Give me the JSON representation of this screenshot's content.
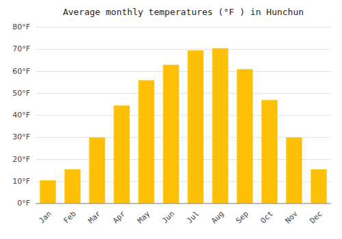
{
  "chart_data": {
    "type": "bar",
    "title": "Average monthly temperatures (°F ) in Hunchun",
    "categories": [
      "Jan",
      "Feb",
      "Mar",
      "Apr",
      "May",
      "Jun",
      "Jul",
      "Aug",
      "Sep",
      "Oct",
      "Nov",
      "Dec"
    ],
    "values": [
      10.5,
      15.5,
      30,
      44.5,
      56,
      63,
      69.5,
      70.5,
      61,
      47,
      30,
      15.5
    ],
    "color": "#FFC107",
    "ylim": [
      0,
      80
    ],
    "yticks": [
      {
        "value": 0,
        "label": "0°F"
      },
      {
        "value": 10,
        "label": "10°F"
      },
      {
        "value": 20,
        "label": "20°F"
      },
      {
        "value": 30,
        "label": "30°F"
      },
      {
        "value": 40,
        "label": "40°F"
      },
      {
        "value": 50,
        "label": "50°F"
      },
      {
        "value": 60,
        "label": "60°F"
      },
      {
        "value": 70,
        "label": "70°F"
      },
      {
        "value": 80,
        "label": "80°F"
      }
    ],
    "grid": true
  }
}
